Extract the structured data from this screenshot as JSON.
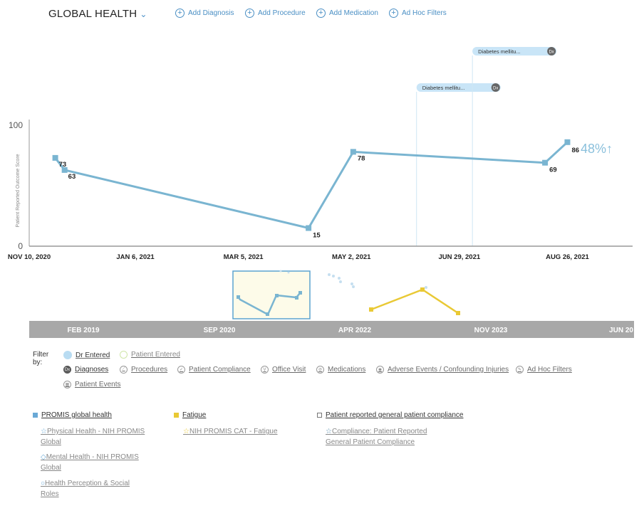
{
  "header": {
    "title": "GLOBAL HEALTH",
    "actions": [
      "Add Diagnosis",
      "Add Procedure",
      "Add Medication",
      "Ad Hoc Filters"
    ]
  },
  "chart_data": {
    "type": "line",
    "ylabel": "Patient Reported Outcome Score",
    "ylim": [
      0,
      100
    ],
    "y_ticks": [
      "100",
      "0"
    ],
    "x_ticks": [
      "NOV 10, 2020",
      "JAN 6, 2021",
      "MAR 5, 2021",
      "MAY 2, 2021",
      "JUN 29, 2021",
      "AUG 26, 2021"
    ],
    "series": [
      {
        "x": [
          "2020-11-24",
          "2020-11-29",
          "2021-04-09",
          "2021-05-03",
          "2021-08-14",
          "2021-08-26"
        ],
        "values": [
          73,
          63,
          15,
          78,
          69,
          86
        ],
        "point_labels": [
          "73",
          "63",
          "15",
          "78",
          "69",
          "86"
        ]
      }
    ],
    "change_label": "48%↑",
    "annotations": [
      {
        "label": "Diabetes mellitu...",
        "badge": "Dx",
        "date": "2021-06-06"
      },
      {
        "label": "Diabetes mellitu...",
        "badge": "Dx",
        "date": "2021-07-06"
      }
    ],
    "overview_ticks": [
      "FEB 2019",
      "SEP 2020",
      "APR 2022",
      "NOV 2023",
      "JUN 20"
    ],
    "colors": {
      "primary": "#7ab5d1",
      "fatigue": "#e9c935",
      "axis_bar": "#a8a8a8"
    }
  },
  "filters": {
    "label": "Filter by:",
    "row1": [
      {
        "label": "Dr Entered",
        "icon": "filled-circle-icon"
      },
      {
        "label": "Patient Entered",
        "icon": "open-circle-icon"
      }
    ],
    "row2": [
      {
        "label": "Diagnoses",
        "icon": "dx-icon",
        "badge": "Dx"
      },
      {
        "label": "Procedures",
        "icon": "procedure-icon",
        "badge": "⟋"
      },
      {
        "label": "Patient Compliance",
        "icon": "check-icon",
        "badge": "✓"
      },
      {
        "label": "Office Visit",
        "icon": "visit-icon",
        "badge": "V"
      },
      {
        "label": "Medications",
        "icon": "pill-icon",
        "badge": "⊘"
      },
      {
        "label": "Adverse Events / Confounding Injuries",
        "icon": "adverse-icon",
        "badge": "◉"
      },
      {
        "label": "Ad Hoc Filters",
        "icon": "adhoc-icon",
        "badge": "✎"
      }
    ],
    "row3": [
      {
        "label": "Patient Events",
        "icon": "events-icon",
        "badge": "▦"
      }
    ]
  },
  "legend": {
    "groups": [
      {
        "title": "PROMIS global health",
        "items": [
          "Physical Health - NIH PROMIS Global",
          "Mental Health - NIH PROMIS Global",
          "Health Perception & Social Roles"
        ],
        "glyphs": [
          "☆",
          "◇",
          "○"
        ]
      },
      {
        "title": "Fatigue",
        "items": [
          "NIH PROMIS CAT - Fatigue"
        ],
        "glyphs": [
          "☆"
        ]
      },
      {
        "title": "Patient reported general patient compliance",
        "items": [
          "Compliance: Patient Reported General Patient Compliance"
        ],
        "glyphs": [
          "☆"
        ]
      }
    ]
  }
}
